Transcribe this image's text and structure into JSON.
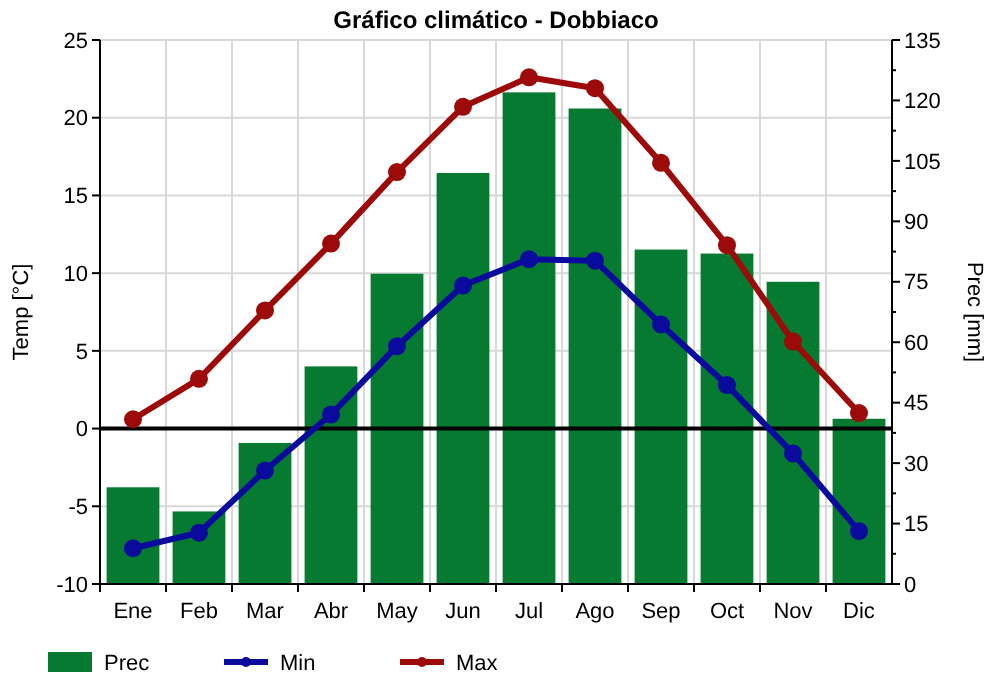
{
  "chart_data": {
    "type": "bar",
    "title": "Gráfico climático - Dobbiaco",
    "ylabel": "Temp [°C]",
    "y2label": "Prec [mm]",
    "categories": [
      "Ene",
      "Feb",
      "Mar",
      "Abr",
      "May",
      "Jun",
      "Jul",
      "Ago",
      "Sep",
      "Oct",
      "Nov",
      "Dic"
    ],
    "series": [
      {
        "name": "Prec",
        "axis": "y2",
        "color": "#067a30",
        "values": [
          24,
          18,
          35,
          54,
          77,
          102,
          122,
          118,
          83,
          82,
          75,
          41
        ]
      },
      {
        "name": "Min",
        "type": "line",
        "color": "#0a0a9c",
        "values": [
          -7.7,
          -6.7,
          -2.7,
          0.9,
          5.3,
          9.2,
          10.9,
          10.8,
          6.7,
          2.8,
          -1.6,
          -6.6
        ]
      },
      {
        "name": "Max",
        "type": "line",
        "color": "#9c0a0a",
        "values": [
          0.6,
          3.2,
          7.6,
          11.9,
          16.5,
          20.7,
          22.6,
          21.9,
          17.1,
          11.8,
          5.6,
          1.0
        ]
      }
    ],
    "ylim": [
      -10,
      25
    ],
    "yticks": [
      -10,
      -5,
      0,
      5,
      10,
      15,
      20,
      25
    ],
    "y2lim": [
      0,
      135
    ],
    "y2ticks": [
      0,
      15,
      30,
      45,
      60,
      75,
      90,
      105,
      120,
      135
    ],
    "ref_lines": [
      {
        "axis": "y",
        "value": 0,
        "color": "#000000"
      }
    ],
    "grid": true,
    "legend": "bottom",
    "marker": "circle",
    "line_style": "solid"
  }
}
